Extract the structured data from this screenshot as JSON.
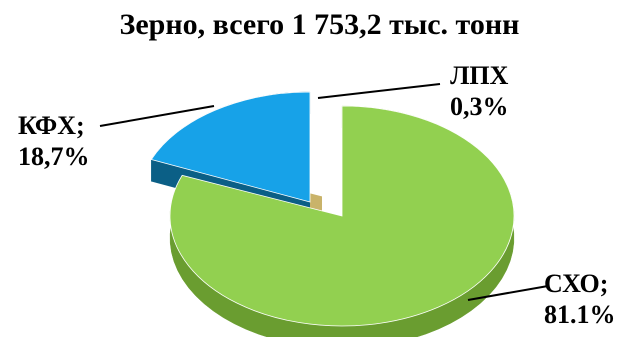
{
  "chart_data": {
    "type": "pie",
    "title": "Зерно, всего 1 753,2 тыс. тонн",
    "slices": [
      {
        "label": "СХО;",
        "value_text": "81.1%",
        "value": 81.1,
        "color": "#92d050",
        "side_color": "#6a9d30"
      },
      {
        "label": "ЛПХ",
        "value_text": "0,3%",
        "value": 0.3,
        "color": "#f2e0a0",
        "side_color": "#c9b36a"
      },
      {
        "label": "КФХ;",
        "value_text": "18,7%",
        "value": 18.7,
        "color": "#17a2e8",
        "side_color": "#0b5f86"
      }
    ],
    "legend": "none",
    "style": "3d-exploded"
  }
}
